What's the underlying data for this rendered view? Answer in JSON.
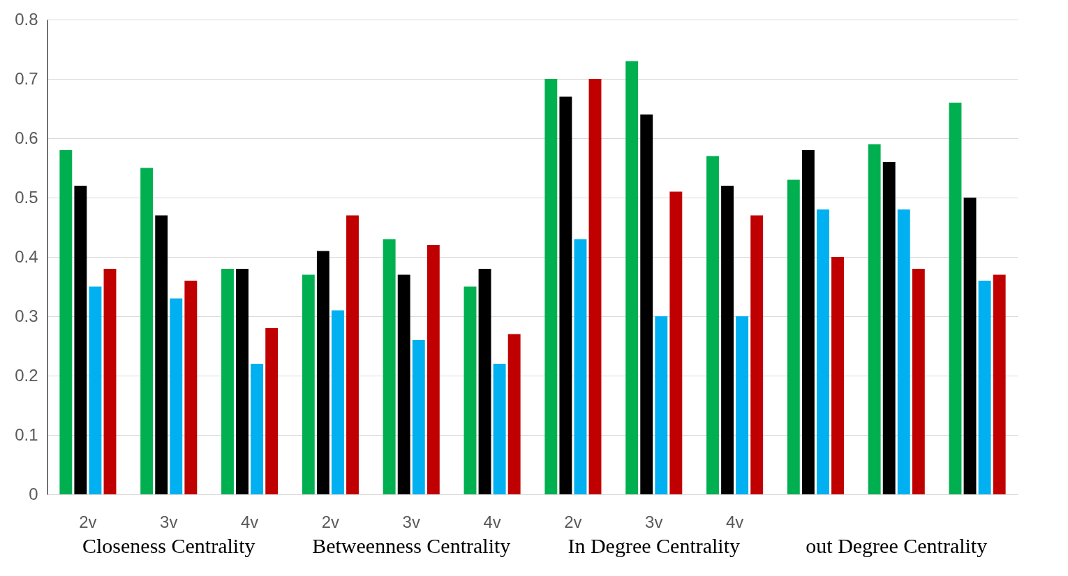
{
  "chart_data": {
    "type": "bar",
    "categories": [
      "2v",
      "3v",
      "4v",
      "2v",
      "3v",
      "4v",
      "2v",
      "3v",
      "4v",
      null,
      null,
      null
    ],
    "annotations": [
      "Closeness Centrality",
      "Betweenness Centrality",
      "In Degree Centrality",
      "out Degree Centrality"
    ],
    "series": [
      {
        "color": "#00b050",
        "values": [
          0.58,
          0.55,
          0.38,
          0.37,
          0.43,
          0.35,
          0.7,
          0.73,
          0.57,
          0.53,
          0.59,
          0.66
        ]
      },
      {
        "color": "#000000",
        "values": [
          0.52,
          0.47,
          0.38,
          0.41,
          0.37,
          0.38,
          0.67,
          0.64,
          0.52,
          0.58,
          0.56,
          0.5
        ]
      },
      {
        "color": "#00b0f0",
        "values": [
          0.35,
          0.33,
          0.22,
          0.31,
          0.26,
          0.22,
          0.43,
          0.3,
          0.3,
          0.48,
          0.48,
          0.36
        ]
      },
      {
        "color": "#c00000",
        "values": [
          0.38,
          0.36,
          0.28,
          0.47,
          0.42,
          0.27,
          0.7,
          0.51,
          0.47,
          0.4,
          0.38,
          0.37
        ]
      }
    ],
    "ylim": [
      0,
      0.8
    ],
    "yticks": [
      0,
      0.1,
      0.2,
      0.3,
      0.4,
      0.5,
      0.6,
      0.7,
      0.8
    ],
    "grid": "y",
    "legend": false
  }
}
